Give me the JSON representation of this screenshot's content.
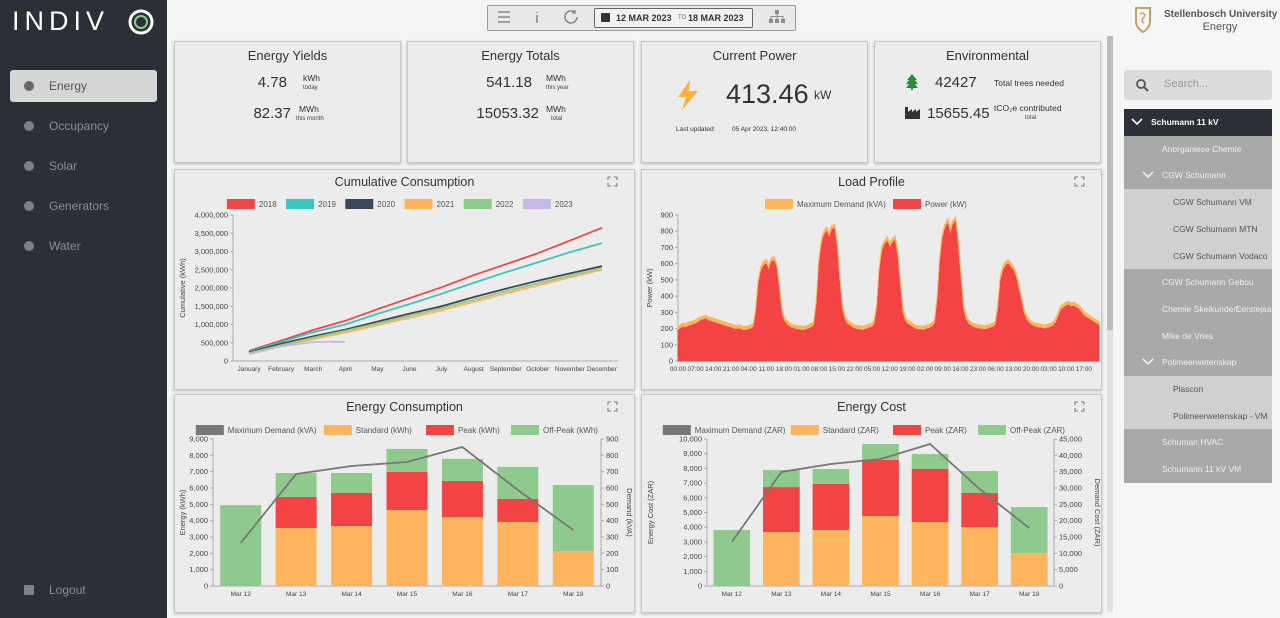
{
  "sidebar": {
    "logo": "INDIV",
    "menu": [
      "Energy",
      "Occupancy",
      "Solar",
      "Generators",
      "Water"
    ],
    "logout": "Logout"
  },
  "toolbar": {
    "start": "12 MAR 2023",
    "separator": "TO",
    "end": "18 MAR 2023"
  },
  "header": {
    "org": "Stellenbosch University",
    "section": "Energy"
  },
  "search": {
    "placeholder": "Search..."
  },
  "tree": {
    "label": "Schumann 11 kV",
    "children": [
      {
        "label": "Anorganiese Chemie"
      },
      {
        "label": "CGW Schumann",
        "children": [
          {
            "label": "CGW Schumann VM"
          },
          {
            "label": "CGW Schumann MTN"
          },
          {
            "label": "CGW Schumann Vodaco"
          }
        ]
      },
      {
        "label": "CGW Schumann Gebou"
      },
      {
        "label": "Chemie Skeikunde/Eerstejaa"
      },
      {
        "label": "Mike de Vries"
      },
      {
        "label": "Polimeerwetenskap",
        "children": [
          {
            "label": "Plascon"
          },
          {
            "label": "Polimeerwetenskap - VM"
          }
        ]
      },
      {
        "label": "Schuman HVAC"
      },
      {
        "label": "Schumann 11 kV VM"
      }
    ]
  },
  "cards": {
    "yields": {
      "title": "Energy Yields",
      "rows": [
        {
          "value": "4.78",
          "unit": "kWh",
          "period": "today"
        },
        {
          "value": "82.37",
          "unit": "MWh",
          "period": "this month"
        }
      ]
    },
    "totals": {
      "title": "Energy Totals",
      "rows": [
        {
          "value": "541.18",
          "unit": "MWh",
          "period": "this year"
        },
        {
          "value": "15053.32",
          "unit": "MWh",
          "period": "total"
        }
      ]
    },
    "power": {
      "title": "Current Power",
      "value": "413.46",
      "unit": "kW",
      "updated_label": "Last updated:",
      "updated": "05 Apr 2023, 12:40:00"
    },
    "environmental": {
      "title": "Environmental",
      "rows": [
        {
          "value": "42427",
          "label": "Total trees needed"
        },
        {
          "value": "15655.45",
          "label": "tCO₂e contributed",
          "sub": "total"
        }
      ]
    }
  },
  "chart_data": [
    {
      "type": "line",
      "title": "Cumulative Consumption",
      "y_label": "Cumulative (kWh)",
      "categories": [
        "January",
        "February",
        "March",
        "April",
        "May",
        "June",
        "July",
        "August",
        "September",
        "October",
        "November",
        "December"
      ],
      "ylim": [
        0,
        4000000
      ],
      "yticks": [
        0,
        {
          "value": 500000,
          "label": "500,000"
        },
        {
          "value": 1000000,
          "label": "1,000,000"
        },
        {
          "value": 1500000,
          "label": "1,500,000"
        },
        {
          "value": 2000000,
          "label": "2,000,000"
        },
        {
          "value": 2500000,
          "label": "2,500,000"
        },
        {
          "value": 3000000,
          "label": "3,000,000"
        },
        {
          "value": 3500000,
          "label": "3,500,000"
        },
        {
          "value": 4000000,
          "label": "4,000,000"
        }
      ],
      "series": [
        {
          "name": "2018",
          "color": "#f04646",
          "values": [
            280000,
            560000,
            850000,
            1100000,
            1420000,
            1720000,
            2020000,
            2350000,
            2650000,
            2950000,
            3300000,
            3650000
          ]
        },
        {
          "name": "2019",
          "color": "#3cc4bd",
          "values": [
            260000,
            520000,
            790000,
            1000000,
            1290000,
            1560000,
            1840000,
            2140000,
            2430000,
            2700000,
            2980000,
            3230000
          ]
        },
        {
          "name": "2020",
          "color": "#3c4654",
          "values": [
            240000,
            470000,
            680000,
            860000,
            1080000,
            1300000,
            1500000,
            1750000,
            1980000,
            2200000,
            2400000,
            2600000
          ]
        },
        {
          "name": "2021",
          "color": "#ffb35a",
          "values": [
            210000,
            400000,
            600000,
            780000,
            980000,
            1180000,
            1390000,
            1620000,
            1850000,
            2070000,
            2290000,
            2500000
          ]
        },
        {
          "name": "2022",
          "color": "#8fcb8a",
          "values": [
            220000,
            430000,
            640000,
            830000,
            1030000,
            1240000,
            1450000,
            1680000,
            1910000,
            2130000,
            2340000,
            2550000
          ]
        },
        {
          "name": "2023",
          "color": "#c5b8e5",
          "values": [
            190000,
            400000,
            520000,
            530000,
            null,
            null,
            null,
            null,
            null,
            null,
            null,
            null
          ]
        }
      ]
    },
    {
      "type": "area",
      "title": "Load Profile",
      "y_label": "Power (kW)",
      "categories": [
        "00:00",
        null,
        null,
        null,
        null,
        null,
        null,
        "07:00",
        null,
        null,
        null,
        null,
        null,
        null,
        "14:00",
        null,
        null,
        null,
        null,
        null,
        null,
        "21:00",
        null,
        null,
        null,
        null,
        null,
        null,
        "04:00",
        null,
        null,
        null,
        null,
        null,
        null,
        "11:00",
        null,
        null,
        null,
        null,
        null,
        null,
        "18:00",
        null,
        null,
        null,
        null,
        null,
        null,
        "01:00",
        null,
        null,
        null,
        null,
        null,
        null,
        "08:00",
        null,
        null,
        null,
        null,
        null,
        null,
        "15:00",
        null,
        null,
        null,
        null,
        null,
        null,
        "22:00",
        null,
        null,
        null,
        null,
        null,
        null,
        "05:00",
        null,
        null,
        null,
        null,
        null,
        null,
        "12:00",
        null,
        null,
        null,
        null,
        null,
        null,
        "19:00",
        null,
        null,
        null,
        null,
        null,
        null,
        "02:00",
        null,
        null,
        null,
        null,
        null,
        null,
        "09:00",
        null,
        null,
        null,
        null,
        null,
        null,
        "16:00",
        null,
        null,
        null,
        null,
        null,
        null,
        "23:00",
        null,
        null,
        null,
        null,
        null,
        null,
        "06:00",
        null,
        null,
        null,
        null,
        null,
        null,
        "13:00",
        null,
        null,
        null,
        null,
        null,
        null,
        "20:00",
        null,
        null,
        null,
        null,
        null,
        null,
        "03:00",
        null,
        null,
        null,
        null,
        null,
        null,
        "10:00",
        null,
        null,
        null,
        null,
        null,
        null,
        "17:00",
        null,
        null,
        null,
        null,
        null,
        null
      ],
      "ylim": [
        0,
        900
      ],
      "yticks": [
        0,
        100,
        200,
        300,
        400,
        500,
        600,
        700,
        800,
        900
      ],
      "series": [
        {
          "name": "Maximum Demand (kVA)",
          "color": "#ffb55e",
          "values": [
            210,
            220,
            230,
            225,
            235,
            240,
            245,
            250,
            260,
            270,
            275,
            280,
            270,
            265,
            260,
            255,
            250,
            245,
            240,
            235,
            230,
            225,
            220,
            215,
            220,
            215,
            210,
            210,
            215,
            220,
            230,
            320,
            500,
            580,
            610,
            620,
            580,
            630,
            640,
            600,
            470,
            320,
            270,
            250,
            235,
            225,
            220,
            215,
            215,
            210,
            210,
            215,
            220,
            230,
            240,
            370,
            620,
            740,
            800,
            820,
            780,
            830,
            840,
            720,
            520,
            340,
            280,
            250,
            240,
            230,
            220,
            215,
            215,
            210,
            215,
            220,
            225,
            230,
            250,
            350,
            580,
            700,
            740,
            760,
            720,
            750,
            765,
            670,
            490,
            320,
            270,
            250,
            240,
            230,
            220,
            215,
            215,
            210,
            215,
            220,
            225,
            235,
            255,
            400,
            640,
            780,
            840,
            870,
            800,
            860,
            880,
            740,
            540,
            350,
            280,
            255,
            240,
            230,
            225,
            220,
            220,
            215,
            215,
            220,
            225,
            230,
            245,
            340,
            520,
            580,
            610,
            620,
            600,
            580,
            540,
            470,
            400,
            320,
            280,
            260,
            245,
            235,
            230,
            225,
            225,
            220,
            220,
            225,
            230,
            240,
            260,
            300,
            340,
            350,
            360,
            365,
            355,
            360,
            350,
            340,
            320,
            300,
            290,
            280,
            270,
            260,
            250,
            240
          ]
        },
        {
          "name": "Power (kW)",
          "color": "#f24444",
          "values": [
            190,
            200,
            210,
            205,
            215,
            220,
            225,
            230,
            240,
            250,
            255,
            260,
            250,
            245,
            240,
            235,
            230,
            225,
            220,
            215,
            210,
            205,
            200,
            195,
            200,
            195,
            190,
            190,
            195,
            200,
            210,
            300,
            480,
            560,
            590,
            600,
            560,
            610,
            620,
            580,
            450,
            300,
            250,
            230,
            215,
            205,
            200,
            195,
            195,
            190,
            190,
            195,
            200,
            210,
            220,
            350,
            600,
            720,
            780,
            800,
            760,
            810,
            820,
            700,
            500,
            320,
            260,
            230,
            220,
            210,
            200,
            195,
            195,
            190,
            195,
            200,
            205,
            210,
            230,
            330,
            560,
            680,
            720,
            740,
            700,
            730,
            745,
            650,
            470,
            300,
            250,
            230,
            220,
            210,
            200,
            195,
            195,
            190,
            195,
            200,
            205,
            215,
            235,
            380,
            620,
            760,
            820,
            850,
            780,
            840,
            860,
            720,
            520,
            330,
            260,
            235,
            220,
            210,
            205,
            200,
            200,
            195,
            195,
            200,
            205,
            210,
            225,
            320,
            500,
            560,
            590,
            600,
            580,
            560,
            520,
            450,
            380,
            300,
            260,
            240,
            225,
            215,
            210,
            205,
            205,
            200,
            200,
            205,
            210,
            220,
            240,
            280,
            320,
            330,
            340,
            345,
            335,
            340,
            330,
            320,
            300,
            280,
            270,
            260,
            250,
            240,
            230,
            220
          ]
        }
      ]
    },
    {
      "type": "bar",
      "stacked": true,
      "title": "Energy Consumption",
      "y_label": "Energy (kWh)",
      "y2_label": "Demand (kVA)",
      "categories": [
        "Mar 12",
        "Mar 13",
        "Mar 14",
        "Mar 15",
        "Mar 16",
        "Mar 17",
        "Mar 18"
      ],
      "ylim": [
        0,
        9000
      ],
      "yticks": [
        0,
        {
          "value": 1000,
          "label": "1,000"
        },
        {
          "value": 2000,
          "label": "2,000"
        },
        {
          "value": 3000,
          "label": "3,000"
        },
        {
          "value": 4000,
          "label": "4,000"
        },
        {
          "value": 5000,
          "label": "5,000"
        },
        {
          "value": 6000,
          "label": "6,000"
        },
        {
          "value": 7000,
          "label": "7,000"
        },
        {
          "value": 8000,
          "label": "8,000"
        },
        {
          "value": 9000,
          "label": "9,000"
        }
      ],
      "y2lim": [
        0,
        900
      ],
      "y2ticks": [
        0,
        100,
        200,
        300,
        400,
        500,
        600,
        700,
        800,
        900
      ],
      "series": [
        {
          "name": "Maximum Demand (kVA)",
          "type": "line",
          "axis": "y2",
          "color": "#777777",
          "values": [
            263,
            686,
            735,
            759,
            851,
            588,
            343
          ]
        },
        {
          "name": "Standard (kWh)",
          "color": "#ffb55e",
          "values": [
            0,
            3550,
            3670,
            4650,
            4220,
            3920,
            2140
          ]
        },
        {
          "name": "Peak (kWh)",
          "color": "#f24444",
          "values": [
            0,
            1900,
            2030,
            2330,
            2210,
            1410,
            0
          ]
        },
        {
          "name": "Off-Peak (kWh)",
          "color": "#8fc98d",
          "values": [
            4950,
            1470,
            1220,
            1410,
            1350,
            1960,
            4040
          ]
        }
      ]
    },
    {
      "type": "bar",
      "stacked": true,
      "title": "Energy Cost",
      "y_label": "Energy Cost (ZAR)",
      "y2_label": "Demand Cost (ZAR)",
      "categories": [
        "Mar 12",
        "Mar 13",
        "Mar 14",
        "Mar 15",
        "Mar 16",
        "Mar 17",
        "Mar 18"
      ],
      "ylim": [
        0,
        10000
      ],
      "yticks": [
        0,
        {
          "value": 1000,
          "label": "1,000"
        },
        {
          "value": 2000,
          "label": "2,000"
        },
        {
          "value": 3000,
          "label": "3,000"
        },
        {
          "value": 4000,
          "label": "4,000"
        },
        {
          "value": 5000,
          "label": "5,000"
        },
        {
          "value": 6000,
          "label": "6,000"
        },
        {
          "value": 7000,
          "label": "7,000"
        },
        {
          "value": 8000,
          "label": "8,000"
        },
        {
          "value": 9000,
          "label": "9,000"
        },
        {
          "value": 10000,
          "label": "10,000"
        }
      ],
      "y2lim": [
        0,
        45000
      ],
      "y2ticks": [
        0,
        {
          "value": 5000,
          "label": "5,000"
        },
        {
          "value": 10000,
          "label": "10,000"
        },
        {
          "value": 15000,
          "label": "15,000"
        },
        {
          "value": 20000,
          "label": "20,000"
        },
        {
          "value": 25000,
          "label": "25,000"
        },
        {
          "value": 30000,
          "label": "30,000"
        },
        {
          "value": 35000,
          "label": "35,000"
        },
        {
          "value": 40000,
          "label": "40,000"
        },
        {
          "value": 45000,
          "label": "45,000"
        }
      ],
      "series": [
        {
          "name": "Maximum Demand (ZAR)",
          "type": "line",
          "axis": "y2",
          "color": "#777777",
          "values": [
            13470,
            34900,
            37350,
            38880,
            43470,
            29690,
            17760
          ]
        },
        {
          "name": "Standard (ZAR)",
          "color": "#ffb55e",
          "values": [
            0,
            3670,
            3810,
            4760,
            4350,
            4010,
            2240
          ]
        },
        {
          "name": "Peak (ZAR)",
          "color": "#f24444",
          "values": [
            0,
            3060,
            3130,
            3810,
            3610,
            2320,
            0
          ]
        },
        {
          "name": "Off-Peak (ZAR)",
          "color": "#8fc98d",
          "values": [
            3810,
            1160,
            1020,
            1090,
            1020,
            1490,
            3130
          ]
        }
      ]
    }
  ]
}
